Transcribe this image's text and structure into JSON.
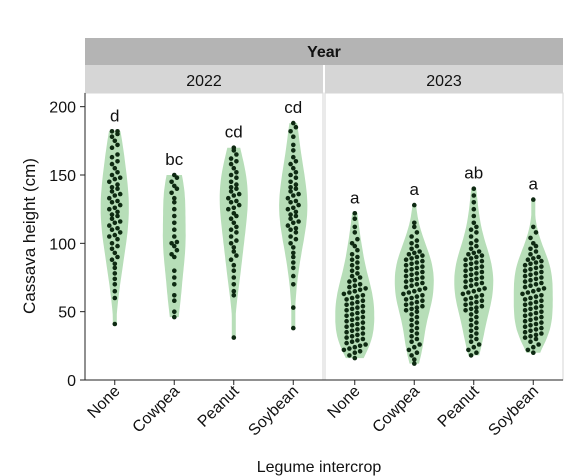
{
  "chart_data": {
    "type": "violin-beeswarm",
    "title": "",
    "facet_title": "Year",
    "facets": [
      "2022",
      "2023"
    ],
    "xlabel": "Legume intercrop",
    "ylabel": "Cassava height (cm)",
    "ylim": [
      0,
      210
    ],
    "yticks": [
      0,
      50,
      100,
      150,
      200
    ],
    "categories": [
      "None",
      "Cowpea",
      "Peanut",
      "Soybean"
    ],
    "colors": {
      "violin": "#b7deb8",
      "point": "#0e2a12",
      "strip_top": "#b4b4b4",
      "strip_sub": "#d6d6d6"
    },
    "panels": [
      {
        "facet": "2022",
        "groups": [
          {
            "category": "None",
            "letter": "d",
            "values": [
              182,
              182,
              180,
              178,
              175,
              172,
              170,
              165,
              163,
              160,
              158,
              155,
              152,
              150,
              148,
              147,
              145,
              143,
              141,
              140,
              138,
              136,
              135,
              133,
              131,
              130,
              128,
              126,
              125,
              123,
              121,
              120,
              118,
              116,
              115,
              113,
              111,
              110,
              108,
              106,
              105,
              103,
              100,
              98,
              96,
              93,
              90,
              88,
              85,
              82,
              78,
              74,
              70,
              65,
              60,
              41
            ]
          },
          {
            "category": "Cowpea",
            "letter": "bc",
            "values": [
              150,
              148,
              145,
              142,
              140,
              137,
              133,
              130,
              125,
              120,
              115,
              110,
              105,
              101,
              100,
              98,
              95,
              92,
              90,
              80,
              75,
              70,
              62,
              58,
              50,
              46
            ]
          },
          {
            "category": "Peanut",
            "letter": "cd",
            "values": [
              170,
              168,
              165,
              162,
              160,
              158,
              155,
              152,
              150,
              148,
              145,
              143,
              141,
              140,
              138,
              136,
              135,
              133,
              131,
              130,
              128,
              126,
              125,
              122,
              120,
              118,
              115,
              112,
              110,
              108,
              105,
              102,
              100,
              97,
              94,
              91,
              88,
              84,
              80,
              75,
              70,
              65,
              62,
              31
            ]
          },
          {
            "category": "Soybean",
            "letter": "cd",
            "values": [
              188,
              185,
              182,
              178,
              172,
              168,
              163,
              160,
              158,
              155,
              152,
              150,
              148,
              145,
              143,
              141,
              140,
              138,
              136,
              135,
              133,
              131,
              130,
              128,
              126,
              125,
              123,
              121,
              120,
              118,
              116,
              115,
              113,
              111,
              110,
              108,
              105,
              103,
              100,
              97,
              93,
              90,
              86,
              82,
              76,
              70,
              53,
              38
            ]
          }
        ]
      },
      {
        "facet": "2023",
        "groups": [
          {
            "category": "None",
            "letter": "a",
            "values": [
              122,
              118,
              112,
              108,
              103,
              100,
              98,
              95,
              92,
              90,
              88,
              86,
              84,
              82,
              80,
              78,
              76,
              75,
              73,
              72,
              70,
              69,
              68,
              67,
              66,
              65,
              64,
              63,
              62,
              61,
              60,
              59,
              58,
              57,
              56,
              55,
              54,
              53,
              52,
              51,
              50,
              49,
              48,
              47,
              46,
              45,
              44,
              43,
              42,
              41,
              40,
              39,
              38,
              37,
              36,
              35,
              34,
              33,
              32,
              31,
              30,
              29,
              28,
              27,
              26,
              25,
              24,
              23,
              22,
              21,
              20,
              18,
              16
            ]
          },
          {
            "category": "Cowpea",
            "letter": "a",
            "values": [
              128,
              115,
              112,
              108,
              105,
              102,
              100,
              98,
              96,
              94,
              93,
              92,
              91,
              90,
              89,
              88,
              87,
              86,
              85,
              84,
              83,
              82,
              81,
              80,
              79,
              78,
              77,
              76,
              75,
              74,
              73,
              72,
              71,
              70,
              69,
              68,
              67,
              66,
              65,
              64,
              63,
              62,
              61,
              60,
              59,
              58,
              57,
              56,
              55,
              54,
              53,
              52,
              51,
              50,
              48,
              46,
              44,
              42,
              40,
              38,
              36,
              34,
              32,
              30,
              28,
              26,
              24,
              22,
              20,
              18,
              15,
              12
            ]
          },
          {
            "category": "Peanut",
            "letter": "ab",
            "values": [
              140,
              135,
              130,
              125,
              120,
              115,
              112,
              110,
              108,
              105,
              102,
              100,
              98,
              96,
              94,
              93,
              92,
              91,
              90,
              89,
              88,
              87,
              86,
              85,
              84,
              83,
              82,
              81,
              80,
              79,
              78,
              77,
              76,
              75,
              74,
              73,
              72,
              71,
              70,
              69,
              68,
              67,
              66,
              65,
              64,
              63,
              62,
              61,
              60,
              59,
              58,
              57,
              56,
              55,
              54,
              53,
              52,
              51,
              50,
              48,
              46,
              44,
              42,
              40,
              38,
              36,
              34,
              32,
              30,
              28,
              26,
              24,
              22,
              20,
              18
            ]
          },
          {
            "category": "Soybean",
            "letter": "a",
            "values": [
              132,
              112,
              108,
              104,
              100,
              98,
              96,
              94,
              92,
              90,
              89,
              88,
              87,
              86,
              85,
              84,
              83,
              82,
              81,
              80,
              79,
              78,
              77,
              76,
              75,
              74,
              73,
              72,
              71,
              70,
              69,
              68,
              67,
              66,
              65,
              64,
              63,
              62,
              61,
              60,
              59,
              58,
              57,
              56,
              55,
              54,
              53,
              52,
              51,
              50,
              49,
              48,
              47,
              46,
              45,
              44,
              43,
              42,
              41,
              40,
              39,
              38,
              37,
              36,
              35,
              34,
              33,
              32,
              31,
              30,
              28,
              26,
              24,
              22,
              20
            ]
          }
        ]
      }
    ]
  }
}
